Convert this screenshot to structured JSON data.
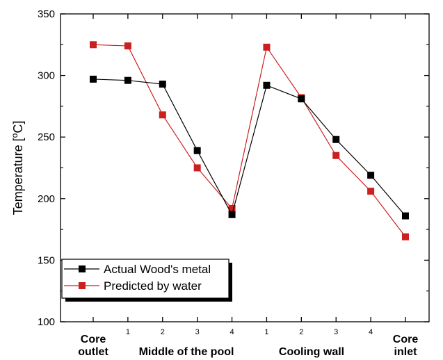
{
  "chart_data": {
    "type": "line",
    "ylabel_prefix": "Temperature [",
    "ylabel_super": "o",
    "ylabel_suffix": "C]",
    "ylim": [
      100,
      350
    ],
    "yticks": [
      100,
      150,
      200,
      250,
      300,
      350
    ],
    "x_tick_labels": [
      "",
      "1",
      "2",
      "3",
      "4",
      "1",
      "2",
      "3",
      "4",
      ""
    ],
    "group_labels": [
      {
        "lines": [
          "Core",
          "outlet"
        ]
      },
      {
        "lines": [
          "Middle of the pool"
        ]
      },
      {
        "lines": [
          "Cooling wall"
        ]
      },
      {
        "lines": [
          "Core",
          "inlet"
        ]
      }
    ],
    "series": [
      {
        "name": "Actual Wood's metal",
        "color": "#000000",
        "values": [
          297,
          296,
          293,
          239,
          187,
          292,
          281,
          248,
          219,
          186
        ]
      },
      {
        "name": "Predicted by water",
        "color": "#cc1f1f",
        "values": [
          325,
          324,
          268,
          225,
          192,
          323,
          282,
          235,
          206,
          169
        ]
      }
    ],
    "grid": false,
    "legend_position": "bottom-left"
  }
}
